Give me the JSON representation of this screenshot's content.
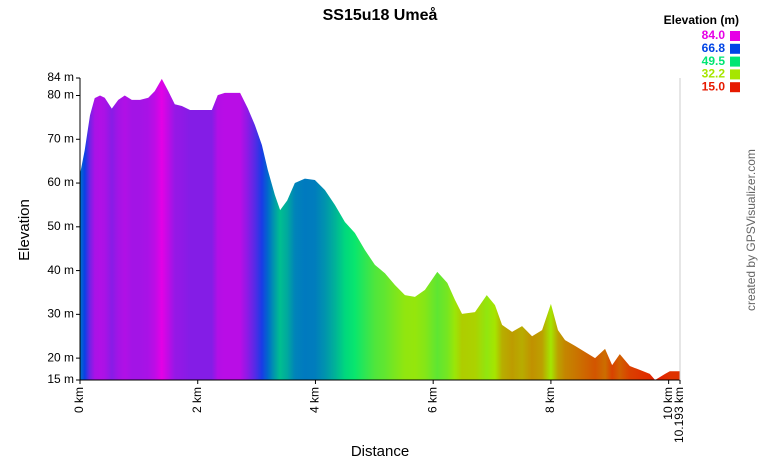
{
  "chart_data": {
    "type": "area",
    "title": "SS15u18 Umeå",
    "x_label": "Distance",
    "y_label": "Elevation",
    "credit": "created by GPSVisualizer.com",
    "x": [
      0,
      0.08,
      0.17,
      0.25,
      0.34,
      0.42,
      0.54,
      0.65,
      0.76,
      0.88,
      1.02,
      1.16,
      1.27,
      1.39,
      1.5,
      1.61,
      1.73,
      1.87,
      2.12,
      2.24,
      2.34,
      2.46,
      2.72,
      2.85,
      2.97,
      3.09,
      3.19,
      3.31,
      3.4,
      3.52,
      3.65,
      3.82,
      3.99,
      4.16,
      4.33,
      4.5,
      4.67,
      4.84,
      5.01,
      5.18,
      5.35,
      5.52,
      5.69,
      5.86,
      6.07,
      6.24,
      6.37,
      6.49,
      6.71,
      6.91,
      7.05,
      7.17,
      7.34,
      7.51,
      7.68,
      7.85,
      8.0,
      8.12,
      8.24,
      8.41,
      8.58,
      8.75,
      8.92,
      9.04,
      9.17,
      9.34,
      9.51,
      9.68,
      9.77,
      9.94,
      10.02,
      10.193
    ],
    "values": [
      62,
      67.5,
      75.5,
      79.4,
      80,
      79.5,
      77,
      79,
      80,
      79,
      79,
      79.5,
      81,
      83.8,
      81,
      78,
      77.6,
      76.7,
      76.7,
      76.7,
      80.1,
      80.6,
      80.6,
      77.1,
      73.3,
      68.7,
      63,
      57.3,
      53.8,
      56,
      60,
      61,
      60.7,
      58.4,
      55,
      51.1,
      48.6,
      44.7,
      41.3,
      39.4,
      36.7,
      34.4,
      34,
      35.6,
      39.7,
      37.2,
      33.3,
      30.1,
      30.5,
      34.4,
      32.1,
      27.6,
      26,
      27.3,
      25,
      26.4,
      32.4,
      26.4,
      24.1,
      22.8,
      21.4,
      20,
      22.1,
      18.4,
      20.9,
      18.2,
      17.3,
      16.4,
      15,
      16.4,
      17,
      17
    ],
    "xlim": [
      0,
      10.193
    ],
    "ylim": [
      15,
      84
    ],
    "xticks": [
      {
        "value": 0,
        "label": "0 km"
      },
      {
        "value": 2,
        "label": "2 km"
      },
      {
        "value": 4,
        "label": "4 km"
      },
      {
        "value": 6,
        "label": "6 km"
      },
      {
        "value": 8,
        "label": "8 km"
      },
      {
        "value": 10,
        "label": "10 km"
      },
      {
        "value": 10.193,
        "label": "10.193 km"
      }
    ],
    "yticks": [
      {
        "value": 15,
        "label": "15 m"
      },
      {
        "value": 20,
        "label": "20 m"
      },
      {
        "value": 30,
        "label": "30 m"
      },
      {
        "value": 40,
        "label": "40 m"
      },
      {
        "value": 50,
        "label": "50 m"
      },
      {
        "value": 60,
        "label": "60 m"
      },
      {
        "value": 70,
        "label": "70 m"
      },
      {
        "value": 80,
        "label": "80 m"
      },
      {
        "value": 84,
        "label": "84 m"
      }
    ],
    "legend": {
      "title": "Elevation (m)",
      "entries": [
        {
          "value": 84,
          "label": "84.0",
          "color": "#e600e6"
        },
        {
          "value": 66.8,
          "label": "66.8",
          "color": "#0044e6"
        },
        {
          "value": 49.5,
          "label": "49.5",
          "color": "#00e673"
        },
        {
          "value": 32.2,
          "label": "32.2",
          "color": "#a6e600"
        },
        {
          "value": 15,
          "label": "15.0",
          "color": "#e61a00"
        }
      ]
    }
  }
}
